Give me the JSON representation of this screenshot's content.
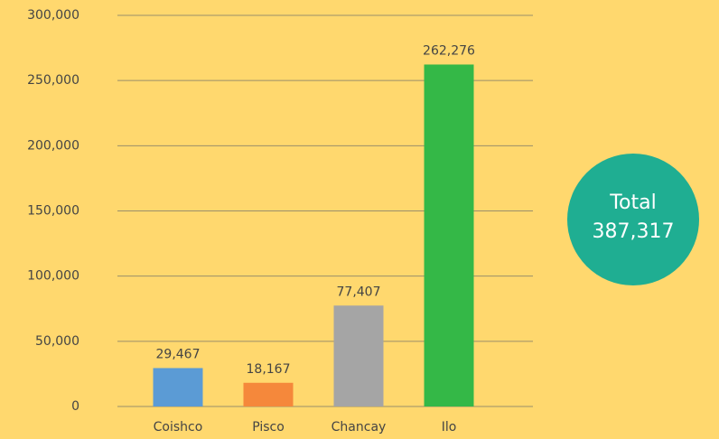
{
  "chart_data": {
    "type": "bar",
    "categories": [
      "Coishco",
      "Pisco",
      "Chancay",
      "Ilo"
    ],
    "values": [
      29467,
      18167,
      77407,
      262276
    ],
    "value_labels": [
      "29,467",
      "18,167",
      "77,407",
      "262,276"
    ],
    "colors": [
      "#5b9bd5",
      "#f5883b",
      "#a5a5a5",
      "#34b847"
    ],
    "ylim": [
      0,
      300000
    ],
    "yticks": [
      0,
      {
        "value": 50000,
        "label": "50,000"
      },
      {
        "value": 100000,
        "label": "100,000"
      },
      {
        "value": 150000,
        "label": "150,000"
      },
      {
        "value": 200000,
        "label": "200,000"
      },
      {
        "value": 250000,
        "label": "250,000"
      },
      {
        "value": 300000,
        "label": "300,000"
      }
    ],
    "grid": true,
    "annotation": {
      "label": "Total",
      "value": 387317,
      "value_label": "387,317",
      "color": "#1fae92"
    }
  }
}
